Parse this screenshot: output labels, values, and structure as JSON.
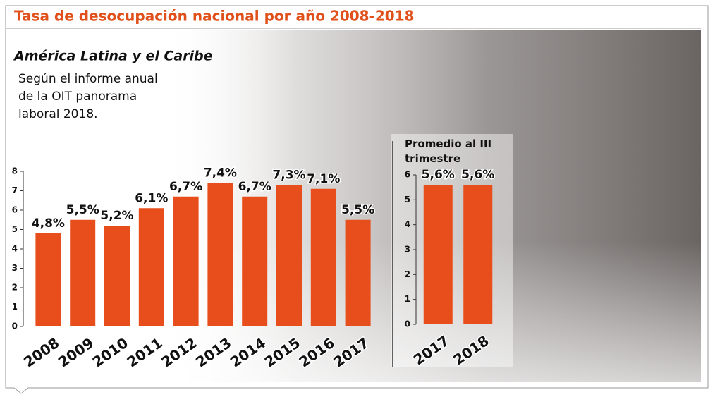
{
  "chart_data": [
    {
      "type": "bar",
      "title": "Tasa de desocupación nacional por año  2008-2018",
      "subtitle": "América Latina y el Caribe",
      "annotation": "Según el informe anual de la OIT panorama laboral 2018.",
      "categories": [
        "2008",
        "2009",
        "2010",
        "2011",
        "2012",
        "2013",
        "2014",
        "2015",
        "2016",
        "2017"
      ],
      "values": [
        4.8,
        5.5,
        5.2,
        6.1,
        6.7,
        7.4,
        6.7,
        7.3,
        7.1,
        5.5
      ],
      "value_labels": [
        "4,8%",
        "5,5%",
        "5,2%",
        "6,1%",
        "6,7%",
        "7,4%",
        "6,7%",
        "7,3%",
        "7,1%",
        "5,5%"
      ],
      "color": "#e84e1b",
      "ylim": [
        0,
        8
      ],
      "yticks": [
        0,
        1,
        2,
        3,
        4,
        5,
        6,
        7,
        8
      ]
    },
    {
      "type": "bar",
      "title": "Promedio al III trimestre",
      "categories": [
        "2017",
        "2018"
      ],
      "values": [
        5.6,
        5.6
      ],
      "value_labels": [
        "5,6%",
        "5,6%"
      ],
      "color": "#e84e1b",
      "ylim": [
        0,
        6
      ],
      "yticks": [
        0,
        1,
        2,
        3,
        4,
        5,
        6
      ]
    }
  ]
}
